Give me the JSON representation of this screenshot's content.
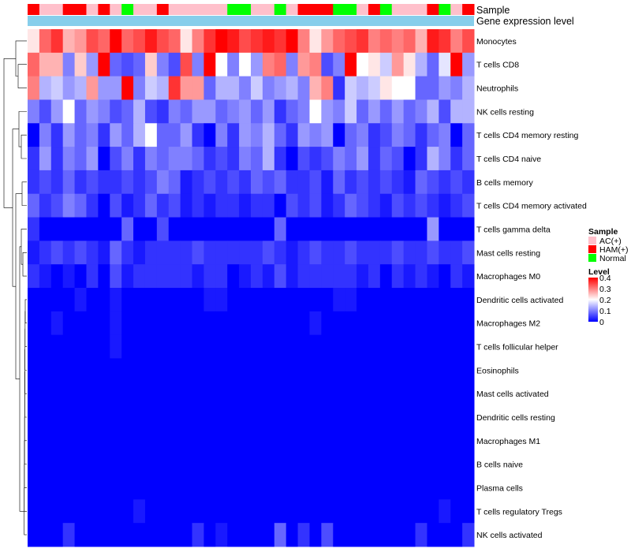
{
  "chart_data": {
    "type": "heatmap",
    "title": "",
    "annotations": {
      "sample_label": "Sample",
      "expression_label": "Gene expression level",
      "expression_color": "#87CEEB"
    },
    "sample_groups": [
      "HAM(+)",
      "AC(+)",
      "AC(+)",
      "HAM(+)",
      "HAM(+)",
      "AC(+)",
      "HAM(+)",
      "AC(+)",
      "Normal",
      "AC(+)",
      "AC(+)",
      "HAM(+)",
      "AC(+)",
      "AC(+)",
      "AC(+)",
      "AC(+)",
      "AC(+)",
      "Normal",
      "Normal",
      "AC(+)",
      "AC(+)",
      "Normal",
      "AC(+)",
      "HAM(+)",
      "HAM(+)",
      "HAM(+)",
      "Normal",
      "Normal",
      "AC(+)",
      "HAM(+)",
      "Normal",
      "AC(+)",
      "AC(+)",
      "AC(+)",
      "HAM(+)",
      "Normal",
      "AC(+)",
      "HAM(+)"
    ],
    "rows": [
      {
        "name": "Monocytes",
        "values": [
          0.22,
          0.32,
          0.36,
          0.26,
          0.28,
          0.34,
          0.32,
          0.4,
          0.32,
          0.34,
          0.38,
          0.34,
          0.32,
          0.22,
          0.3,
          0.36,
          0.4,
          0.38,
          0.34,
          0.36,
          0.38,
          0.36,
          0.4,
          0.3,
          0.22,
          0.28,
          0.32,
          0.34,
          0.36,
          0.3,
          0.32,
          0.3,
          0.32,
          0.26,
          0.38,
          0.36,
          0.3,
          0.34
        ]
      },
      {
        "name": "T cells CD8",
        "values": [
          0.32,
          0.26,
          0.26,
          0.1,
          0.24,
          0.12,
          0.4,
          0.08,
          0.06,
          0.08,
          0.24,
          0.1,
          0.06,
          0.34,
          0.1,
          0.4,
          0.2,
          0.1,
          0.2,
          0.12,
          0.3,
          0.32,
          0.1,
          0.28,
          0.3,
          0.06,
          0.1,
          0.4,
          0.2,
          0.22,
          0.16,
          0.28,
          0.22,
          0.14,
          0.08,
          0.18,
          0.4,
          0.12
        ]
      },
      {
        "name": "Neutrophils",
        "values": [
          0.3,
          0.14,
          0.16,
          0.12,
          0.14,
          0.28,
          0.12,
          0.12,
          0.4,
          0.1,
          0.16,
          0.14,
          0.36,
          0.28,
          0.28,
          0.08,
          0.14,
          0.14,
          0.1,
          0.16,
          0.1,
          0.12,
          0.14,
          0.1,
          0.26,
          0.3,
          0.04,
          0.16,
          0.14,
          0.16,
          0.22,
          0.2,
          0.2,
          0.08,
          0.08,
          0.12,
          0.1,
          0.14
        ]
      },
      {
        "name": "NK cells resting",
        "values": [
          0.1,
          0.06,
          0.12,
          0.2,
          0.08,
          0.12,
          0.1,
          0.06,
          0.08,
          0.14,
          0.06,
          0.04,
          0.1,
          0.08,
          0.12,
          0.12,
          0.08,
          0.1,
          0.12,
          0.08,
          0.12,
          0.04,
          0.08,
          0.1,
          0.2,
          0.12,
          0.1,
          0.16,
          0.08,
          0.12,
          0.08,
          0.12,
          0.08,
          0.1,
          0.14,
          0.06,
          0.14,
          0.14
        ]
      },
      {
        "name": "T cells CD4 memory resting",
        "values": [
          0.0,
          0.1,
          0.04,
          0.12,
          0.08,
          0.1,
          0.04,
          0.12,
          0.08,
          0.14,
          0.2,
          0.08,
          0.08,
          0.12,
          0.04,
          0.0,
          0.1,
          0.04,
          0.12,
          0.1,
          0.14,
          0.08,
          0.04,
          0.12,
          0.1,
          0.12,
          0.0,
          0.08,
          0.1,
          0.04,
          0.06,
          0.1,
          0.08,
          0.04,
          0.08,
          0.1,
          0.0,
          0.08
        ]
      },
      {
        "name": "T cells CD4 naive",
        "values": [
          0.04,
          0.12,
          0.04,
          0.1,
          0.08,
          0.12,
          0.0,
          0.06,
          0.1,
          0.04,
          0.1,
          0.08,
          0.1,
          0.1,
          0.08,
          0.04,
          0.06,
          0.04,
          0.1,
          0.08,
          0.14,
          0.04,
          0.0,
          0.06,
          0.04,
          0.06,
          0.1,
          0.08,
          0.12,
          0.04,
          0.08,
          0.06,
          0.0,
          0.04,
          0.14,
          0.1,
          0.04,
          0.08
        ]
      },
      {
        "name": "B cells memory",
        "values": [
          0.04,
          0.06,
          0.04,
          0.08,
          0.04,
          0.06,
          0.04,
          0.04,
          0.06,
          0.04,
          0.06,
          0.1,
          0.08,
          0.02,
          0.04,
          0.06,
          0.04,
          0.06,
          0.04,
          0.08,
          0.06,
          0.08,
          0.04,
          0.04,
          0.06,
          0.02,
          0.08,
          0.04,
          0.06,
          0.04,
          0.06,
          0.04,
          0.02,
          0.08,
          0.06,
          0.04,
          0.06,
          0.04
        ]
      },
      {
        "name": "T cells CD4 memory activated",
        "values": [
          0.08,
          0.04,
          0.06,
          0.1,
          0.08,
          0.04,
          0.0,
          0.06,
          0.02,
          0.04,
          0.08,
          0.04,
          0.06,
          0.02,
          0.04,
          0.02,
          0.04,
          0.04,
          0.02,
          0.04,
          0.04,
          0.0,
          0.06,
          0.04,
          0.06,
          0.02,
          0.04,
          0.08,
          0.06,
          0.04,
          0.02,
          0.06,
          0.04,
          0.06,
          0.04,
          0.02,
          0.04,
          0.06
        ]
      },
      {
        "name": "T cells gamma delta",
        "values": [
          0.04,
          0.0,
          0.0,
          0.0,
          0.0,
          0.0,
          0.0,
          0.0,
          0.08,
          0.0,
          0.0,
          0.06,
          0.0,
          0.0,
          0.0,
          0.0,
          0.0,
          0.0,
          0.0,
          0.0,
          0.0,
          0.08,
          0.0,
          0.0,
          0.0,
          0.0,
          0.0,
          0.0,
          0.0,
          0.0,
          0.0,
          0.0,
          0.0,
          0.0,
          0.12,
          0.0,
          0.0,
          0.0
        ]
      },
      {
        "name": "Mast cells resting",
        "values": [
          0.02,
          0.04,
          0.06,
          0.04,
          0.06,
          0.04,
          0.02,
          0.08,
          0.04,
          0.02,
          0.04,
          0.04,
          0.04,
          0.04,
          0.06,
          0.04,
          0.04,
          0.04,
          0.04,
          0.04,
          0.06,
          0.04,
          0.02,
          0.04,
          0.06,
          0.04,
          0.04,
          0.06,
          0.04,
          0.04,
          0.04,
          0.06,
          0.04,
          0.04,
          0.06,
          0.04,
          0.04,
          0.06
        ]
      },
      {
        "name": "Macrophages M0",
        "values": [
          0.04,
          0.02,
          0.0,
          0.02,
          0.0,
          0.04,
          0.0,
          0.06,
          0.02,
          0.04,
          0.04,
          0.04,
          0.04,
          0.04,
          0.02,
          0.04,
          0.04,
          0.0,
          0.02,
          0.04,
          0.02,
          0.06,
          0.02,
          0.04,
          0.04,
          0.04,
          0.04,
          0.04,
          0.02,
          0.04,
          0.0,
          0.04,
          0.02,
          0.04,
          0.02,
          0.0,
          0.04,
          0.02
        ]
      },
      {
        "name": "Dendritic cells activated",
        "values": [
          0.0,
          0.0,
          0.0,
          0.0,
          0.02,
          0.0,
          0.0,
          0.02,
          0.0,
          0.0,
          0.0,
          0.0,
          0.0,
          0.0,
          0.0,
          0.02,
          0.02,
          0.0,
          0.0,
          0.0,
          0.0,
          0.0,
          0.0,
          0.0,
          0.0,
          0.0,
          0.02,
          0.02,
          0.0,
          0.0,
          0.0,
          0.0,
          0.0,
          0.0,
          0.0,
          0.0,
          0.0,
          0.0
        ]
      },
      {
        "name": "Macrophages M2",
        "values": [
          0.0,
          0.0,
          0.02,
          0.0,
          0.0,
          0.0,
          0.0,
          0.02,
          0.0,
          0.0,
          0.0,
          0.0,
          0.0,
          0.0,
          0.0,
          0.0,
          0.0,
          0.0,
          0.0,
          0.0,
          0.0,
          0.0,
          0.0,
          0.0,
          0.02,
          0.0,
          0.0,
          0.0,
          0.0,
          0.0,
          0.0,
          0.0,
          0.0,
          0.0,
          0.0,
          0.0,
          0.0,
          0.0
        ]
      },
      {
        "name": "T cells follicular helper",
        "values": [
          0.0,
          0.0,
          0.0,
          0.0,
          0.0,
          0.0,
          0.0,
          0.02,
          0.0,
          0.0,
          0.0,
          0.0,
          0.0,
          0.0,
          0.0,
          0.0,
          0.0,
          0.0,
          0.0,
          0.0,
          0.0,
          0.0,
          0.0,
          0.0,
          0.0,
          0.0,
          0.0,
          0.0,
          0.0,
          0.0,
          0.0,
          0.0,
          0.0,
          0.0,
          0.0,
          0.0,
          0.0,
          0.0
        ]
      },
      {
        "name": "Eosinophils",
        "values": [
          0.0,
          0.0,
          0.0,
          0.0,
          0.0,
          0.0,
          0.0,
          0.0,
          0.0,
          0.0,
          0.0,
          0.0,
          0.0,
          0.0,
          0.0,
          0.0,
          0.0,
          0.0,
          0.0,
          0.0,
          0.0,
          0.0,
          0.0,
          0.0,
          0.0,
          0.0,
          0.0,
          0.0,
          0.0,
          0.0,
          0.0,
          0.0,
          0.0,
          0.0,
          0.0,
          0.0,
          0.0,
          0.0
        ]
      },
      {
        "name": "Mast cells activated",
        "values": [
          0.0,
          0.0,
          0.0,
          0.0,
          0.0,
          0.0,
          0.0,
          0.0,
          0.0,
          0.0,
          0.0,
          0.0,
          0.0,
          0.0,
          0.0,
          0.0,
          0.0,
          0.0,
          0.0,
          0.0,
          0.0,
          0.0,
          0.0,
          0.0,
          0.0,
          0.0,
          0.0,
          0.0,
          0.0,
          0.0,
          0.0,
          0.0,
          0.0,
          0.0,
          0.0,
          0.0,
          0.0,
          0.0
        ]
      },
      {
        "name": "Dendritic cells resting",
        "values": [
          0.0,
          0.0,
          0.0,
          0.0,
          0.0,
          0.0,
          0.0,
          0.0,
          0.0,
          0.0,
          0.0,
          0.0,
          0.0,
          0.0,
          0.0,
          0.0,
          0.0,
          0.0,
          0.0,
          0.0,
          0.0,
          0.0,
          0.0,
          0.0,
          0.0,
          0.0,
          0.0,
          0.0,
          0.0,
          0.0,
          0.0,
          0.0,
          0.0,
          0.0,
          0.0,
          0.0,
          0.0,
          0.0
        ]
      },
      {
        "name": "Macrophages M1",
        "values": [
          0.0,
          0.0,
          0.0,
          0.0,
          0.0,
          0.0,
          0.0,
          0.0,
          0.0,
          0.0,
          0.0,
          0.0,
          0.0,
          0.0,
          0.0,
          0.0,
          0.0,
          0.0,
          0.0,
          0.0,
          0.0,
          0.0,
          0.0,
          0.0,
          0.0,
          0.0,
          0.0,
          0.0,
          0.0,
          0.0,
          0.0,
          0.0,
          0.0,
          0.0,
          0.0,
          0.0,
          0.0,
          0.0
        ]
      },
      {
        "name": "B cells naive",
        "values": [
          0.0,
          0.0,
          0.0,
          0.0,
          0.0,
          0.0,
          0.0,
          0.0,
          0.0,
          0.0,
          0.0,
          0.0,
          0.0,
          0.0,
          0.0,
          0.0,
          0.0,
          0.0,
          0.0,
          0.0,
          0.0,
          0.0,
          0.0,
          0.0,
          0.0,
          0.0,
          0.0,
          0.0,
          0.0,
          0.0,
          0.0,
          0.0,
          0.0,
          0.0,
          0.0,
          0.0,
          0.0,
          0.0
        ]
      },
      {
        "name": "Plasma cells",
        "values": [
          0.0,
          0.0,
          0.0,
          0.0,
          0.0,
          0.0,
          0.0,
          0.0,
          0.0,
          0.0,
          0.0,
          0.0,
          0.0,
          0.0,
          0.0,
          0.0,
          0.0,
          0.0,
          0.0,
          0.0,
          0.0,
          0.0,
          0.0,
          0.0,
          0.0,
          0.0,
          0.0,
          0.0,
          0.0,
          0.0,
          0.0,
          0.0,
          0.0,
          0.0,
          0.0,
          0.0,
          0.0,
          0.0
        ]
      },
      {
        "name": "T cells regulatory  Tregs",
        "values": [
          0.0,
          0.0,
          0.0,
          0.0,
          0.0,
          0.0,
          0.0,
          0.0,
          0.0,
          0.02,
          0.0,
          0.0,
          0.0,
          0.0,
          0.0,
          0.0,
          0.0,
          0.0,
          0.0,
          0.0,
          0.0,
          0.0,
          0.0,
          0.0,
          0.0,
          0.0,
          0.0,
          0.0,
          0.0,
          0.0,
          0.0,
          0.0,
          0.0,
          0.0,
          0.0,
          0.02,
          0.0,
          0.0
        ]
      },
      {
        "name": "NK cells activated",
        "values": [
          0.0,
          0.0,
          0.0,
          0.04,
          0.0,
          0.0,
          0.0,
          0.0,
          0.0,
          0.0,
          0.0,
          0.0,
          0.0,
          0.0,
          0.04,
          0.0,
          0.02,
          0.0,
          0.0,
          0.0,
          0.0,
          0.08,
          0.0,
          0.04,
          0.0,
          0.06,
          0.0,
          0.0,
          0.0,
          0.0,
          0.0,
          0.0,
          0.0,
          0.04,
          0.0,
          0.0,
          0.0,
          0.04
        ]
      }
    ],
    "color_scale": {
      "min": 0,
      "max": 0.4,
      "low": "#0000FF",
      "mid": "#FFFFFF",
      "high": "#FF0000",
      "mid_value": 0.2
    },
    "legend": {
      "sample": {
        "title": "Sample",
        "entries": [
          {
            "label": "AC(+)",
            "color": "#FFC0CB"
          },
          {
            "label": "HAM(+)",
            "color": "#FF0000"
          },
          {
            "label": "Normal",
            "color": "#00FF00"
          }
        ]
      },
      "level": {
        "title": "Level",
        "ticks": [
          {
            "value": 0.4,
            "label": "0.4"
          },
          {
            "value": 0.3,
            "label": "0.3"
          },
          {
            "value": 0.2,
            "label": "0.2"
          },
          {
            "value": 0.1,
            "label": "0.1"
          },
          {
            "value": 0,
            "label": "0"
          }
        ]
      }
    }
  }
}
